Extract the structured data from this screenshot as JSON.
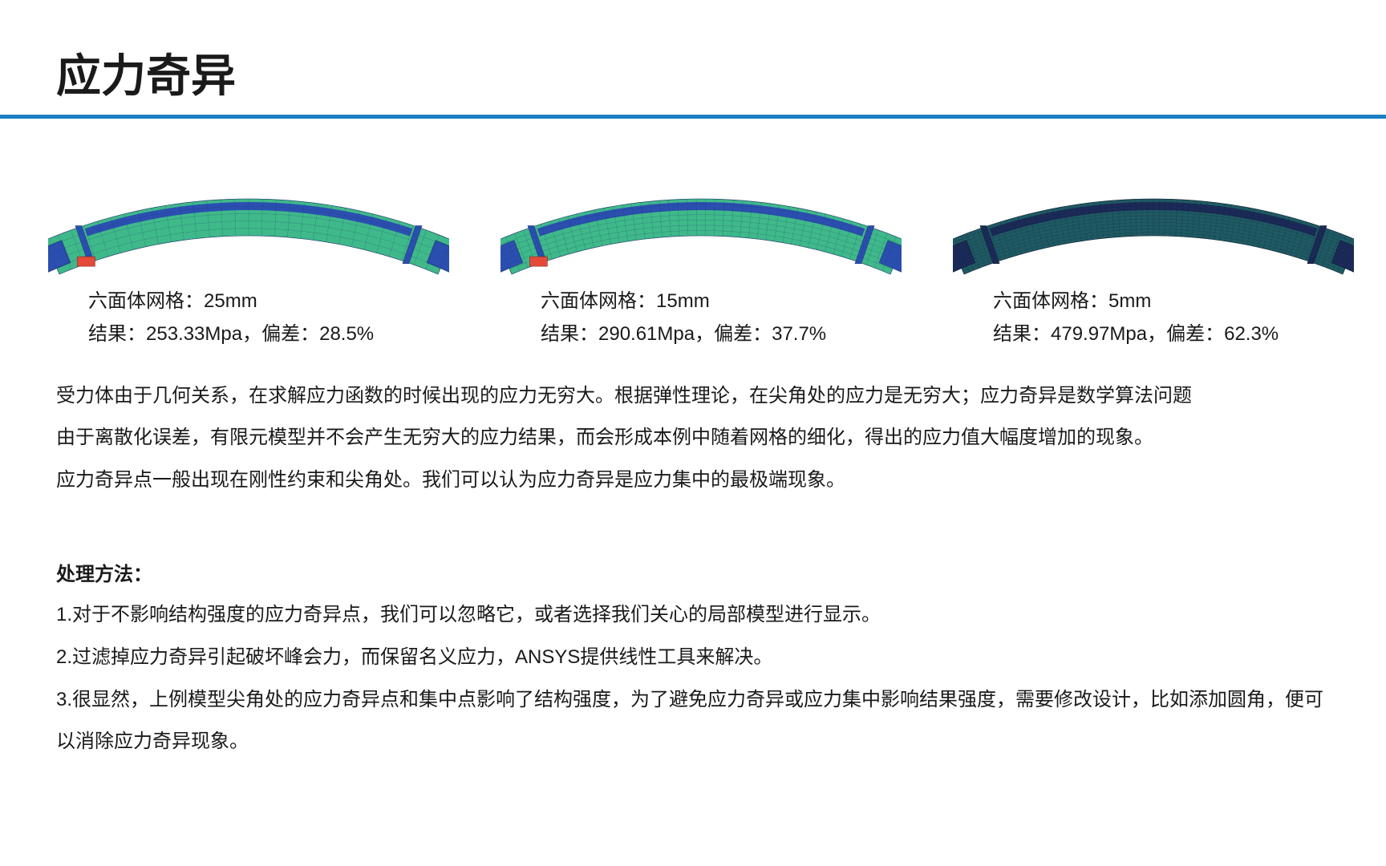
{
  "title": "应力奇异",
  "divider_color": "#1b7fc4",
  "figures": [
    {
      "mesh_label": "六面体网格：",
      "mesh_value": "25mm",
      "result_label": "结果：",
      "result_value": "253.33Mpa，",
      "dev_label": "偏差：",
      "dev_value": "28.5%",
      "style": {
        "mesh_density": 30,
        "body_fill": "#3fb98a",
        "band_fill": "#2b4fb0",
        "end_fill": "#2b4fb0",
        "line_color": "#1a3a6a",
        "tag_color": "#e34a3a"
      }
    },
    {
      "mesh_label": "六面体网格：",
      "mesh_value": "15mm",
      "result_label": "结果：",
      "result_value": "290.61Mpa，",
      "dev_label": "偏差：",
      "dev_value": "37.7%",
      "style": {
        "mesh_density": 45,
        "body_fill": "#3fb98a",
        "band_fill": "#2b4fb0",
        "end_fill": "#2b4fb0",
        "line_color": "#1a3a6a",
        "tag_color": "#e34a3a"
      }
    },
    {
      "mesh_label": "六面体网格：",
      "mesh_value": "5mm",
      "result_label": "结果：",
      "result_value": "479.97Mpa，",
      "dev_label": "偏差：",
      "dev_value": "62.3%",
      "style": {
        "mesh_density": 70,
        "body_fill": "#1f5a63",
        "band_fill": "#1b2a58",
        "end_fill": "#1b2a58",
        "line_color": "#0e1f33",
        "tag_color": "none"
      }
    }
  ],
  "paragraph": [
    "受力体由于几何关系，在求解应力函数的时候出现的应力无穷大。根据弹性理论，在尖角处的应力是无穷大；应力奇异是数学算法问题",
    "由于离散化误差，有限元模型并不会产生无穷大的应力结果，而会形成本例中随着网格的细化，得出的应力值大幅度增加的现象。",
    "应力奇异点一般出现在刚性约束和尖角处。我们可以认为应力奇异是应力集中的最极端现象。"
  ],
  "methods_title": "处理方法：",
  "methods": [
    "1.对于不影响结构强度的应力奇异点，我们可以忽略它，或者选择我们关心的局部模型进行显示。",
    "2.过滤掉应力奇异引起破坏峰会力，而保留名义应力，ANSYS提供线性工具来解决。",
    "3.很显然，上例模型尖角处的应力奇异点和集中点影响了结构强度，为了避免应力奇异或应力集中影响结果强度，需要修改设计，比如添加圆角，便可以消除应力奇异现象。"
  ]
}
